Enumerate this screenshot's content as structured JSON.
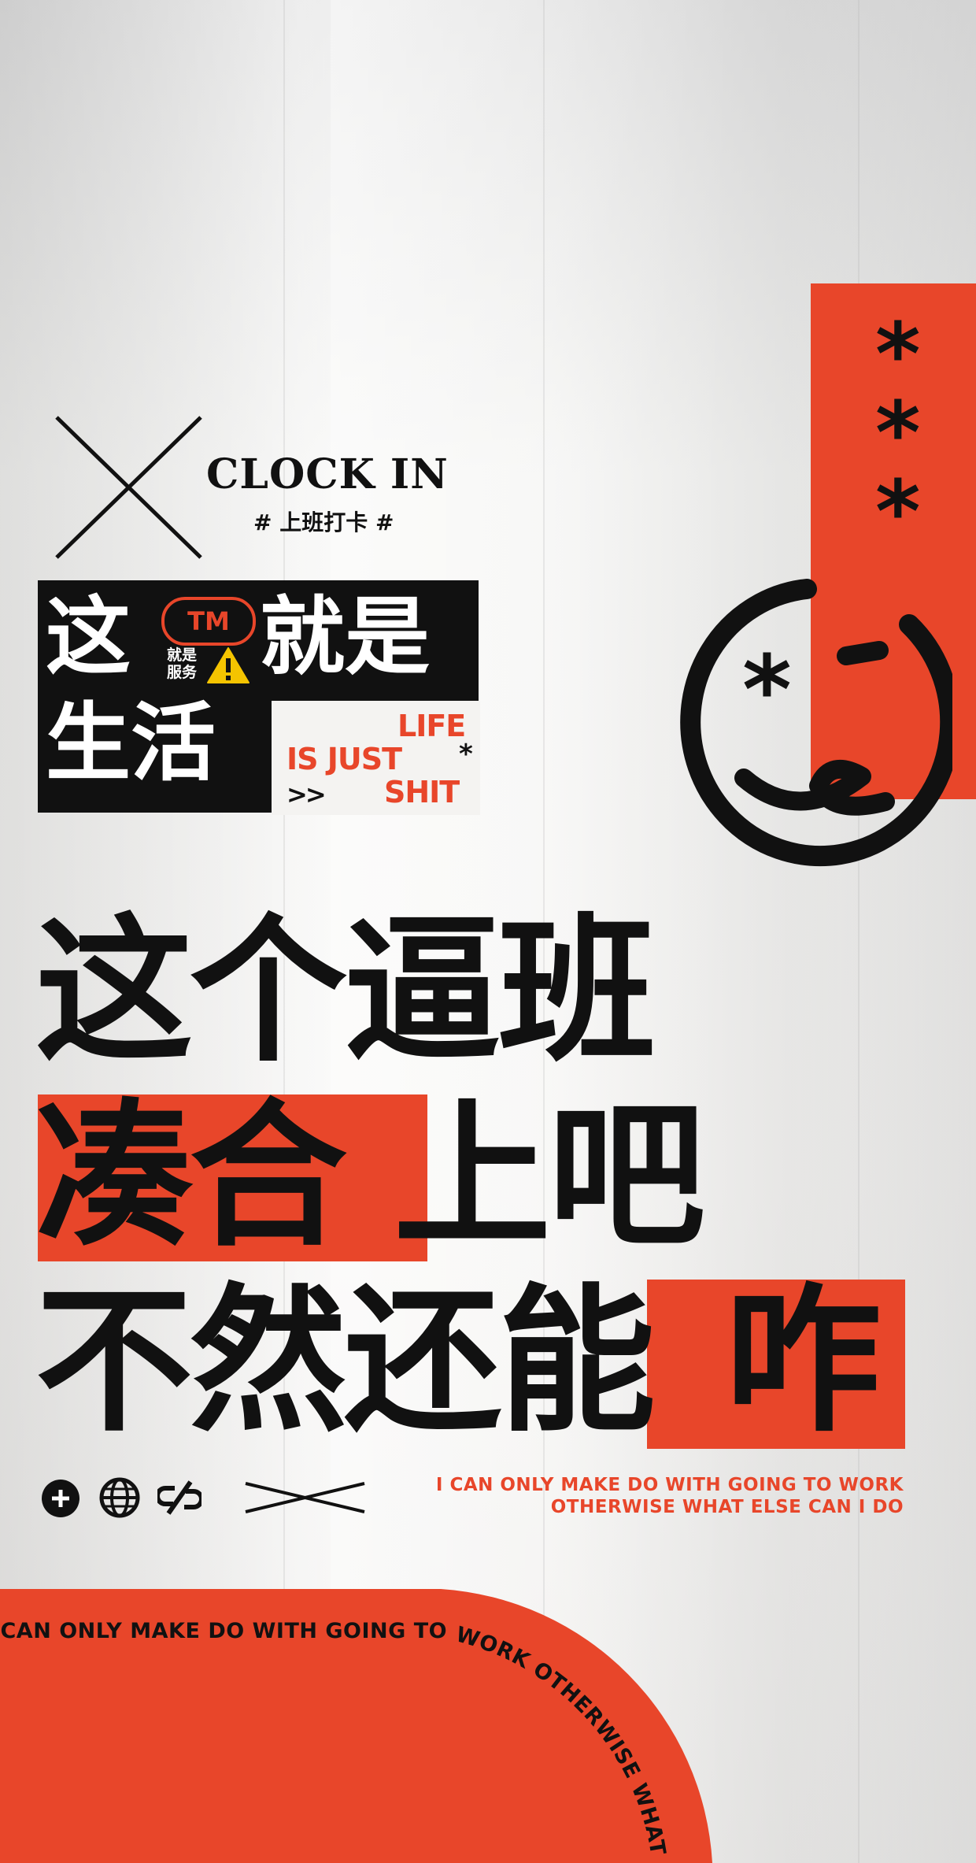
{
  "clock": {
    "title": "CLOCK IN",
    "subtitle": "# 上班打卡 #"
  },
  "block": {
    "line1_a": "这",
    "line1_b": "就是",
    "line2": "生活",
    "tm": "TM",
    "small_1": "就是",
    "small_2": "服务",
    "warning": "!"
  },
  "life": {
    "line1": "LIFE",
    "line2": "IS JUST",
    "line3": "SHIT",
    "arrows": ">>",
    "star": "*"
  },
  "headline": {
    "line1": "这个逼班",
    "line2_highlight": "凑合",
    "line2_rest": "上吧",
    "line3_main": "不然还能",
    "line3_highlight": "咋"
  },
  "english": {
    "line1": "I CAN ONLY MAKE DO WITH GOING TO WORK",
    "line2": "OTHERWISE WHAT ELSE CAN I DO"
  },
  "curve": {
    "text": "I CAN ONLY MAKE DO WITH GOING TO WORK OTHERWISE WHAT ELSE"
  },
  "stars": [
    "*",
    "*",
    "*"
  ],
  "smiley": {
    "eye": "*"
  },
  "colors": {
    "accent": "#e8462a",
    "ink": "#111111",
    "paper": "#f3f2f0"
  },
  "icons": [
    "add-icon",
    "globe-icon",
    "link-icon",
    "cross-lines-icon"
  ]
}
